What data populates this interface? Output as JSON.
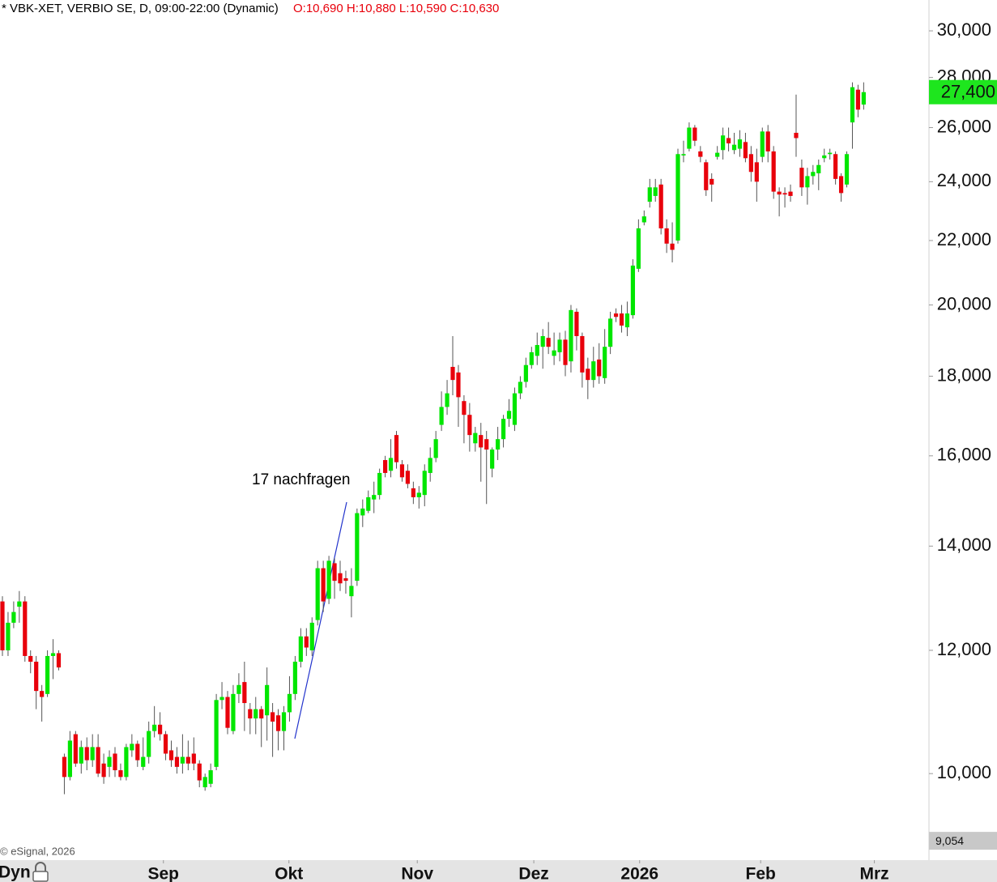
{
  "chart_data": {
    "type": "candlestick",
    "title": "* VBK-XET, VERBIO SE, D, 09:00-22:00 (Dynamic)",
    "ohlc_label": "O:10,690 H:10,880 L:10,590 C:10,630",
    "annotation": "17 nachfragen",
    "copyright": "© eSignal, 2026",
    "dyn_button": "Dyn",
    "log_scale": true,
    "up_color": "#00e600",
    "down_color": "#e8000b",
    "wick_color": "#555555",
    "ylim": [
      8926,
      31400
    ],
    "yticks": [
      {
        "value": 10000,
        "label": "10,000"
      },
      {
        "value": 12000,
        "label": "12,000"
      },
      {
        "value": 14000,
        "label": "14,000"
      },
      {
        "value": 16000,
        "label": "16,000"
      },
      {
        "value": 18000,
        "label": "18,000"
      },
      {
        "value": 20000,
        "label": "20,000"
      },
      {
        "value": 22000,
        "label": "22,000"
      },
      {
        "value": 24000,
        "label": "24,000"
      },
      {
        "value": 26000,
        "label": "26,000"
      },
      {
        "value": 28000,
        "label": "28,000"
      },
      {
        "value": 30000,
        "label": "30,000"
      }
    ],
    "xlim": [
      -0.43,
      164.6
    ],
    "xticks": [
      {
        "value": 28.6,
        "label": "Sep"
      },
      {
        "value": 50.9,
        "label": "Okt"
      },
      {
        "value": 73.7,
        "label": "Nov"
      },
      {
        "value": 94.4,
        "label": "Dez"
      },
      {
        "value": 113.2,
        "label": "2026"
      },
      {
        "value": 134.7,
        "label": "Feb"
      },
      {
        "value": 154.9,
        "label": "Mrz"
      }
    ],
    "last_price": {
      "value": 27400,
      "label": "27,400"
    },
    "last_price_color": "#1ee61e",
    "bottom_marker": {
      "value": 9054,
      "label": "9,054"
    },
    "open": [
      12900,
      12000,
      12500,
      12800,
      12900,
      11900,
      11800,
      11300,
      11250,
      11900,
      11950,
      10250,
      9950,
      10600,
      10150,
      10400,
      10200,
      10400,
      10150,
      10100,
      10300,
      10050,
      9950,
      10350,
      10450,
      10100,
      10250,
      10650,
      10750,
      10600,
      10350,
      10250,
      10150,
      10250,
      10300,
      10150,
      9800,
      9850,
      10100,
      11150,
      11200,
      10650,
      11250,
      11450,
      11000,
      10850,
      11000,
      10900,
      10950,
      10900,
      10650,
      10950,
      11250,
      11800,
      12250,
      12000,
      12550,
      13550,
      12950,
      13650,
      13450,
      13350,
      13000,
      13300,
      14650,
      14750,
      15000,
      15100,
      15900,
      15650,
      16500,
      15800,
      15650,
      15250,
      15050,
      15100,
      15600,
      15950,
      16750,
      17200,
      18250,
      18100,
      17350,
      17000,
      16300,
      16500,
      16400,
      15700,
      16150,
      16400,
      16900,
      16750,
      17550,
      17850,
      18300,
      18550,
      18800,
      19050,
      18550,
      18650,
      19000,
      18400,
      19800,
      19100,
      18200,
      17900,
      18450,
      17950,
      18800,
      19750,
      19750,
      19350,
      19700,
      21100,
      22600,
      23300,
      23500,
      23900,
      22400,
      21900,
      22000,
      24950,
      25200,
      26000,
      25100,
      24700,
      24100,
      24900,
      25150,
      25600,
      25150,
      25200,
      25450,
      25000,
      24700,
      24900,
      25850,
      25100,
      23650,
      23600,
      23650,
      25800,
      24500,
      23800,
      24200,
      24300,
      24850,
      25000,
      25000,
      24200,
      23900,
      26200,
      27500,
      26900
    ],
    "high": [
      13000,
      12700,
      12900,
      13100,
      13000,
      12000,
      11900,
      11400,
      12000,
      12200,
      12000,
      10300,
      10650,
      10650,
      10500,
      10550,
      10600,
      10600,
      10300,
      10350,
      10400,
      10150,
      10450,
      10600,
      10500,
      10550,
      10800,
      11050,
      10950,
      10650,
      10500,
      10400,
      10600,
      10500,
      10550,
      10200,
      10000,
      10150,
      11250,
      11450,
      11300,
      11400,
      11600,
      11800,
      11100,
      11200,
      11050,
      11700,
      11100,
      11000,
      11050,
      11550,
      11900,
      12400,
      12400,
      12600,
      13700,
      13700,
      13800,
      13750,
      13700,
      13500,
      13550,
      14800,
      15000,
      15200,
      15400,
      15700,
      16000,
      16400,
      16600,
      15900,
      15800,
      15400,
      15300,
      15800,
      16200,
      16600,
      17600,
      17900,
      19100,
      18300,
      17500,
      17300,
      16700,
      16800,
      16600,
      16200,
      16700,
      17000,
      17400,
      17700,
      18000,
      18500,
      18800,
      19200,
      19300,
      19500,
      19200,
      19200,
      19250,
      20000,
      19900,
      19200,
      18500,
      18800,
      18900,
      19300,
      19800,
      19900,
      20000,
      20100,
      21400,
      22700,
      23000,
      24100,
      24100,
      24100,
      22700,
      22600,
      25200,
      25500,
      26200,
      26100,
      25300,
      24800,
      24300,
      25300,
      26000,
      26000,
      25800,
      25900,
      25800,
      25300,
      25200,
      26000,
      26100,
      25300,
      23800,
      23800,
      23900,
      27300,
      24800,
      24500,
      24600,
      24800,
      25200,
      25200,
      25100,
      24300,
      25100,
      27800,
      27700,
      27800
    ],
    "low": [
      11900,
      11900,
      12400,
      12500,
      11800,
      11600,
      11000,
      10800,
      11200,
      11500,
      11650,
      9700,
      9900,
      10100,
      10000,
      10050,
      10100,
      9950,
      9850,
      9950,
      9950,
      9900,
      9900,
      10250,
      10100,
      10050,
      10150,
      10550,
      10500,
      10200,
      10100,
      10000,
      10000,
      10050,
      10050,
      9800,
      9750,
      9800,
      10050,
      11000,
      10600,
      10600,
      11100,
      10650,
      10600,
      10600,
      10400,
      10500,
      10250,
      10350,
      10350,
      10800,
      11150,
      11700,
      11900,
      11900,
      12450,
      12700,
      12850,
      12950,
      13100,
      13050,
      12600,
      13200,
      14400,
      14700,
      14700,
      15000,
      15500,
      15500,
      15700,
      15400,
      15250,
      14900,
      14800,
      14850,
      15400,
      15850,
      16600,
      17000,
      17500,
      16700,
      16300,
      16100,
      16100,
      15400,
      14900,
      15500,
      15900,
      16200,
      16700,
      16600,
      17400,
      17700,
      18200,
      18300,
      18200,
      18600,
      18300,
      18400,
      18000,
      18100,
      18700,
      17700,
      17400,
      17700,
      17800,
      17800,
      18600,
      19500,
      19200,
      19100,
      19600,
      21000,
      22500,
      23100,
      23300,
      22200,
      21600,
      21300,
      21900,
      24700,
      25100,
      25300,
      24700,
      23500,
      23300,
      24800,
      24800,
      25100,
      25000,
      24900,
      24700,
      24000,
      23300,
      24700,
      24700,
      23400,
      22800,
      23100,
      23300,
      24900,
      23500,
      23200,
      23900,
      23700,
      24700,
      24800,
      23900,
      23300,
      23800,
      25200,
      26400,
      26700
    ],
    "close": [
      12000,
      12500,
      12700,
      12900,
      11900,
      11800,
      11300,
      11200,
      11900,
      11950,
      11700,
      9950,
      10500,
      10150,
      10400,
      10200,
      10400,
      10000,
      9950,
      10250,
      10050,
      9950,
      10400,
      10450,
      10200,
      10250,
      10650,
      10750,
      10600,
      10300,
      10200,
      10100,
      10250,
      10150,
      10150,
      9900,
      9950,
      10050,
      11150,
      11200,
      10700,
      11250,
      11400,
      11100,
      10850,
      11000,
      10850,
      11400,
      10800,
      10650,
      10950,
      11250,
      11800,
      12250,
      12050,
      12500,
      13550,
      12900,
      13700,
      13300,
      13250,
      13300,
      13200,
      14700,
      14800,
      15050,
      15100,
      15600,
      15600,
      15950,
      15850,
      15500,
      15350,
      15050,
      15150,
      15650,
      15950,
      16400,
      17200,
      17550,
      17900,
      17450,
      17000,
      16500,
      16550,
      16200,
      16150,
      16150,
      16400,
      16900,
      17100,
      17550,
      17850,
      18300,
      18650,
      18850,
      19100,
      18800,
      18700,
      19000,
      18300,
      19850,
      19100,
      18100,
      17900,
      18400,
      18000,
      18800,
      19600,
      19650,
      19400,
      19750,
      21200,
      22400,
      22800,
      23800,
      23800,
      22400,
      21900,
      21700,
      25000,
      25000,
      26000,
      25500,
      24900,
      23700,
      23900,
      25050,
      25700,
      25400,
      25350,
      25550,
      24850,
      24350,
      24000,
      25850,
      25100,
      23650,
      23550,
      23550,
      23500,
      25600,
      23800,
      24200,
      24350,
      24600,
      24950,
      25050,
      24100,
      23600,
      25000,
      27600,
      26700,
      27400
    ]
  }
}
